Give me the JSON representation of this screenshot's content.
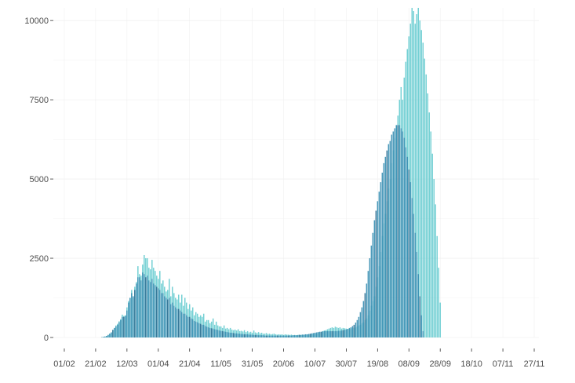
{
  "chart_data": {
    "type": "bar",
    "title": "",
    "xlabel": "",
    "ylabel": "",
    "ylim": [
      0,
      10400
    ],
    "xlim": [
      "2020-01-25",
      "2020-11-30"
    ],
    "grid": true,
    "legend": "none",
    "colors": {
      "back": "#5cc8cc",
      "front": "#3a8fb3",
      "front_dark": "#2f6f93"
    },
    "y_ticks": [
      {
        "value": 0,
        "label": "0"
      },
      {
        "value": 2500,
        "label": "2500"
      },
      {
        "value": 5000,
        "label": "5000"
      },
      {
        "value": 7500,
        "label": "7500"
      },
      {
        "value": 10000,
        "label": "10000"
      }
    ],
    "x_ticks": [
      {
        "value": "2020-02-01",
        "label": "01/02"
      },
      {
        "value": "2020-02-21",
        "label": "21/02"
      },
      {
        "value": "2020-03-12",
        "label": "12/03"
      },
      {
        "value": "2020-04-01",
        "label": "01/04"
      },
      {
        "value": "2020-04-21",
        "label": "21/04"
      },
      {
        "value": "2020-05-11",
        "label": "11/05"
      },
      {
        "value": "2020-05-31",
        "label": "31/05"
      },
      {
        "value": "2020-06-20",
        "label": "20/06"
      },
      {
        "value": "2020-07-10",
        "label": "10/07"
      },
      {
        "value": "2020-07-30",
        "label": "30/07"
      },
      {
        "value": "2020-08-19",
        "label": "19/08"
      },
      {
        "value": "2020-09-08",
        "label": "08/09"
      },
      {
        "value": "2020-09-28",
        "label": "28/09"
      },
      {
        "value": "2020-10-18",
        "label": "18/10"
      },
      {
        "value": "2020-11-07",
        "label": "07/11"
      },
      {
        "value": "2020-11-27",
        "label": "27/11"
      }
    ],
    "series": [
      {
        "role": "back",
        "x_start": "2020-02-01",
        "step_days": 1,
        "values": [
          0,
          0,
          0,
          0,
          0,
          0,
          0,
          0,
          0,
          0,
          0,
          0,
          0,
          0,
          0,
          0,
          0,
          0,
          0,
          0,
          0,
          0,
          0,
          0,
          10,
          20,
          30,
          50,
          80,
          120,
          160,
          240,
          300,
          380,
          430,
          510,
          580,
          720,
          680,
          700,
          950,
          1150,
          1250,
          1500,
          1250,
          1600,
          1750,
          2250,
          2000,
          1950,
          2300,
          2600,
          2500,
          2500,
          2200,
          2150,
          2450,
          2200,
          2100,
          1950,
          1850,
          2100,
          1700,
          1800,
          1600,
          1450,
          1500,
          1850,
          1300,
          1600,
          1400,
          1250,
          1200,
          1350,
          1100,
          1350,
          1000,
          1250,
          1100,
          900,
          1050,
          850,
          950,
          700,
          800,
          750,
          650,
          700,
          650,
          750,
          500,
          550,
          550,
          450,
          500,
          600,
          400,
          500,
          380,
          350,
          350,
          300,
          380,
          280,
          300,
          260,
          300,
          250,
          230,
          250,
          220,
          260,
          200,
          210,
          190,
          230,
          170,
          200,
          160,
          180,
          150,
          220,
          160,
          140,
          170,
          130,
          150,
          120,
          120,
          140,
          110,
          120,
          100,
          110,
          120,
          100,
          90,
          100,
          90,
          100,
          80,
          100,
          90,
          90,
          80,
          90,
          70,
          80,
          70,
          80,
          90,
          80,
          90,
          80,
          100,
          90,
          100,
          100,
          110,
          120,
          130,
          120,
          150,
          160,
          180,
          200,
          220,
          230,
          260,
          280,
          300,
          320,
          300,
          340,
          320,
          300,
          320,
          280,
          300,
          290,
          280,
          270,
          300,
          260,
          300,
          300,
          320,
          350,
          380,
          400,
          450,
          480,
          550,
          600,
          700,
          850,
          1000,
          1150,
          1300,
          1600,
          1900,
          2250,
          2700,
          3200,
          3600,
          3900,
          4300,
          4700,
          5000,
          5500,
          5900,
          6300,
          6700,
          7000,
          7500,
          7900,
          7500,
          8200,
          8700,
          9100,
          9500,
          9900,
          10400,
          10300,
          9900,
          10200,
          10400,
          10000,
          9700,
          9300,
          8800,
          8300,
          7700,
          7100,
          6500,
          5800,
          5000,
          4200,
          3200,
          2200,
          1100,
          0
        ]
      },
      {
        "role": "front",
        "x_start": "2020-02-01",
        "step_days": 1,
        "values": [
          0,
          0,
          0,
          0,
          0,
          0,
          0,
          0,
          0,
          0,
          0,
          0,
          0,
          0,
          0,
          0,
          0,
          0,
          0,
          0,
          0,
          0,
          0,
          0,
          10,
          20,
          30,
          50,
          80,
          120,
          160,
          240,
          300,
          350,
          400,
          480,
          550,
          650,
          650,
          680,
          850,
          1100,
          1250,
          1400,
          1300,
          1500,
          1700,
          1900,
          1900,
          1800,
          2050,
          2000,
          1900,
          1950,
          1800,
          1750,
          1850,
          1700,
          1650,
          1600,
          1550,
          1500,
          1400,
          1400,
          1300,
          1250,
          1200,
          1250,
          1050,
          1100,
          1000,
          950,
          900,
          900,
          850,
          800,
          750,
          750,
          700,
          650,
          650,
          600,
          580,
          520,
          500,
          480,
          450,
          430,
          400,
          400,
          360,
          340,
          320,
          300,
          290,
          280,
          260,
          250,
          240,
          220,
          210,
          200,
          190,
          180,
          170,
          160,
          150,
          150,
          140,
          130,
          130,
          120,
          120,
          110,
          110,
          100,
          100,
          100,
          90,
          90,
          90,
          80,
          80,
          80,
          70,
          70,
          70,
          70,
          60,
          60,
          60,
          60,
          60,
          60,
          60,
          60,
          60,
          60,
          60,
          60,
          60,
          60,
          60,
          60,
          60,
          60,
          70,
          70,
          70,
          70,
          80,
          80,
          90,
          90,
          100,
          100,
          110,
          120,
          130,
          140,
          150,
          160,
          170,
          180,
          180,
          190,
          200,
          200,
          200,
          200,
          200,
          200,
          200,
          200,
          200,
          210,
          210,
          220,
          230,
          240,
          250,
          270,
          290,
          320,
          360,
          400,
          470,
          550,
          650,
          800,
          950,
          1150,
          1400,
          1700,
          2100,
          2500,
          2900,
          3300,
          3700,
          4000,
          4300,
          4600,
          4900,
          5200,
          5500,
          5700,
          5900,
          6100,
          6200,
          6400,
          6500,
          6600,
          6700,
          6700,
          6700,
          6600,
          6500,
          6300,
          6000,
          5700,
          5300,
          4900,
          4400,
          3900,
          3300,
          2700,
          2000,
          1300,
          700,
          200,
          0
        ]
      }
    ]
  }
}
